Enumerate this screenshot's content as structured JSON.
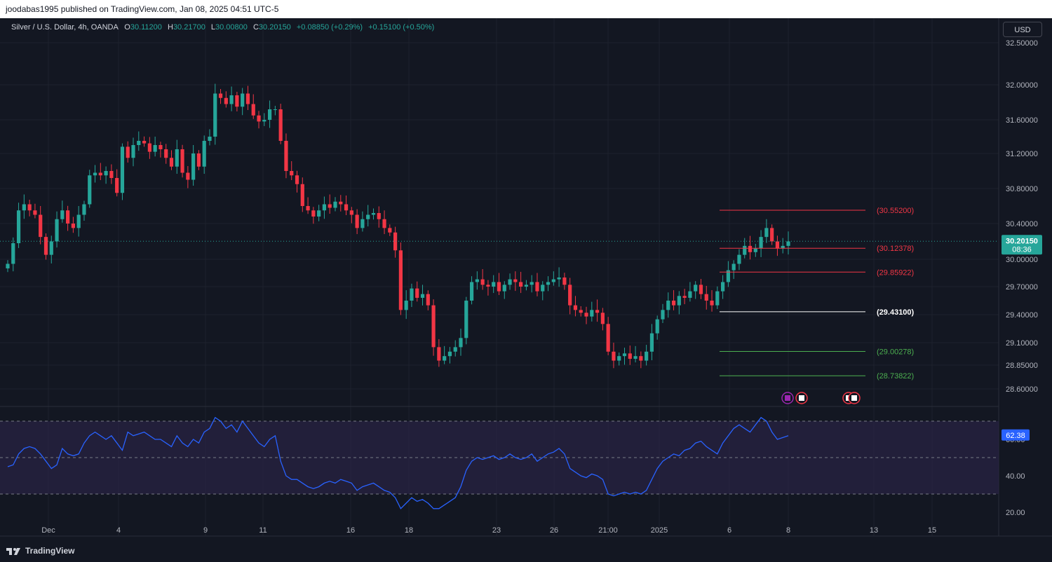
{
  "header": {
    "publisher": "joodabas1995 published on TradingView.com, Jan 08, 2025 04:51 UTC-5"
  },
  "legend": {
    "symbol": "Silver / U.S. Dollar, 4h, OANDA",
    "open_label": "O",
    "open": "30.11200",
    "high_label": "H",
    "high": "30.21700",
    "low_label": "L",
    "low": "30.00800",
    "close_label": "C",
    "close": "30.20150",
    "change": "+0.08850 (+0.29%)",
    "change2": "+0.15100 (+0.50%)"
  },
  "currency_button": "USD",
  "footer": {
    "brand": "TradingView"
  },
  "colors": {
    "background": "#131722",
    "up": "#26a69a",
    "down": "#f23645",
    "rsi_line": "#2962ff",
    "grid": "#1e222d",
    "text": "#b2b5be"
  },
  "chart_data": [
    {
      "type": "candlestick",
      "interval": "4h",
      "y_ticks": [
        "32.50000",
        "32.00000",
        "31.60000",
        "31.20000",
        "30.80000",
        "30.40000",
        "30.00000",
        "29.70000",
        "29.40000",
        "29.10000",
        "28.85000",
        "28.60000"
      ],
      "x_ticks": [
        "Dec",
        "4",
        "9",
        "11",
        "16",
        "18",
        "23",
        "26",
        "21:00",
        "2025",
        "6",
        "8",
        "13",
        "15"
      ],
      "last_price": "30.20150",
      "countdown": "08:36",
      "close_series": [
        29.95,
        30.18,
        30.55,
        30.62,
        30.55,
        30.5,
        30.25,
        30.05,
        30.2,
        30.45,
        30.55,
        30.4,
        30.35,
        30.5,
        30.62,
        30.95,
        30.98,
        30.95,
        31.0,
        30.92,
        30.75,
        31.28,
        31.15,
        31.3,
        31.35,
        31.32,
        31.22,
        31.3,
        31.25,
        31.15,
        31.05,
        31.25,
        30.98,
        30.9,
        31.2,
        31.05,
        31.35,
        31.4,
        31.9,
        31.85,
        31.78,
        31.88,
        31.75,
        31.9,
        31.78,
        31.65,
        31.58,
        31.6,
        31.72,
        31.72,
        31.35,
        31.0,
        30.95,
        30.85,
        30.6,
        30.55,
        30.48,
        30.55,
        30.62,
        30.58,
        30.65,
        30.62,
        30.55,
        30.5,
        30.35,
        30.45,
        30.5,
        30.52,
        30.45,
        30.35,
        30.3,
        30.1,
        29.45,
        29.55,
        29.68,
        29.58,
        29.62,
        29.5,
        29.05,
        28.9,
        28.95,
        29.0,
        29.05,
        29.15,
        29.55,
        29.75,
        29.78,
        29.72,
        29.7,
        29.75,
        29.65,
        29.72,
        29.78,
        29.75,
        29.7,
        29.72,
        29.75,
        29.65,
        29.72,
        29.75,
        29.78,
        29.8,
        29.72,
        29.5,
        29.45,
        29.42,
        29.38,
        29.45,
        29.42,
        29.3,
        29.0,
        28.9,
        28.95,
        28.98,
        28.92,
        28.95,
        28.9,
        29.0,
        29.2,
        29.35,
        29.45,
        29.55,
        29.5,
        29.6,
        29.58,
        29.65,
        29.72,
        29.62,
        29.55,
        29.5,
        29.65,
        29.75,
        29.88,
        29.95,
        30.05,
        30.15,
        30.08,
        30.12,
        30.25,
        30.35,
        30.2,
        30.12,
        30.15,
        30.2
      ],
      "levels": [
        {
          "label": "(30.55200)",
          "value": 30.552,
          "color": "#f23645"
        },
        {
          "label": "(30.12378)",
          "value": 30.12378,
          "color": "#f23645"
        },
        {
          "label": "(29.85922)",
          "value": 29.85922,
          "color": "#f23645"
        },
        {
          "label": "(29.43100)",
          "value": 29.431,
          "color": "#ffffff"
        },
        {
          "label": "(29.00278)",
          "value": 29.00278,
          "color": "#4caf50"
        },
        {
          "label": "(28.73822)",
          "value": 28.73822,
          "color": "#4caf50"
        }
      ]
    },
    {
      "type": "line",
      "indicator": "RSI",
      "y_ticks": [
        "60.00",
        "40.00",
        "20.00"
      ],
      "bands": [
        70,
        50,
        30
      ],
      "ylim": [
        20,
        80
      ],
      "last_value": "62.38",
      "values": [
        45,
        46,
        52,
        55,
        56,
        55,
        52,
        48,
        44,
        46,
        55,
        52,
        51,
        52,
        58,
        62,
        64,
        62,
        60,
        62,
        58,
        54,
        64,
        62,
        63,
        64,
        62,
        60,
        60,
        58,
        56,
        62,
        58,
        56,
        60,
        58,
        64,
        66,
        72,
        70,
        66,
        68,
        64,
        70,
        66,
        62,
        58,
        56,
        60,
        62,
        48,
        40,
        38,
        38,
        36,
        34,
        33,
        34,
        36,
        37,
        36,
        38,
        37,
        36,
        32,
        34,
        35,
        36,
        34,
        32,
        31,
        28,
        22,
        25,
        28,
        26,
        27,
        25,
        22,
        22,
        24,
        26,
        28,
        34,
        43,
        48,
        50,
        49,
        50,
        51,
        49,
        50,
        52,
        50,
        49,
        50,
        52,
        48,
        50,
        52,
        53,
        55,
        52,
        44,
        42,
        40,
        39,
        41,
        40,
        38,
        30,
        29,
        30,
        31,
        30,
        31,
        30,
        32,
        38,
        44,
        48,
        50,
        52,
        51,
        54,
        55,
        58,
        59,
        56,
        54,
        52,
        58,
        62,
        66,
        68,
        66,
        64,
        68,
        72,
        70,
        64,
        60,
        61,
        62
      ]
    }
  ]
}
